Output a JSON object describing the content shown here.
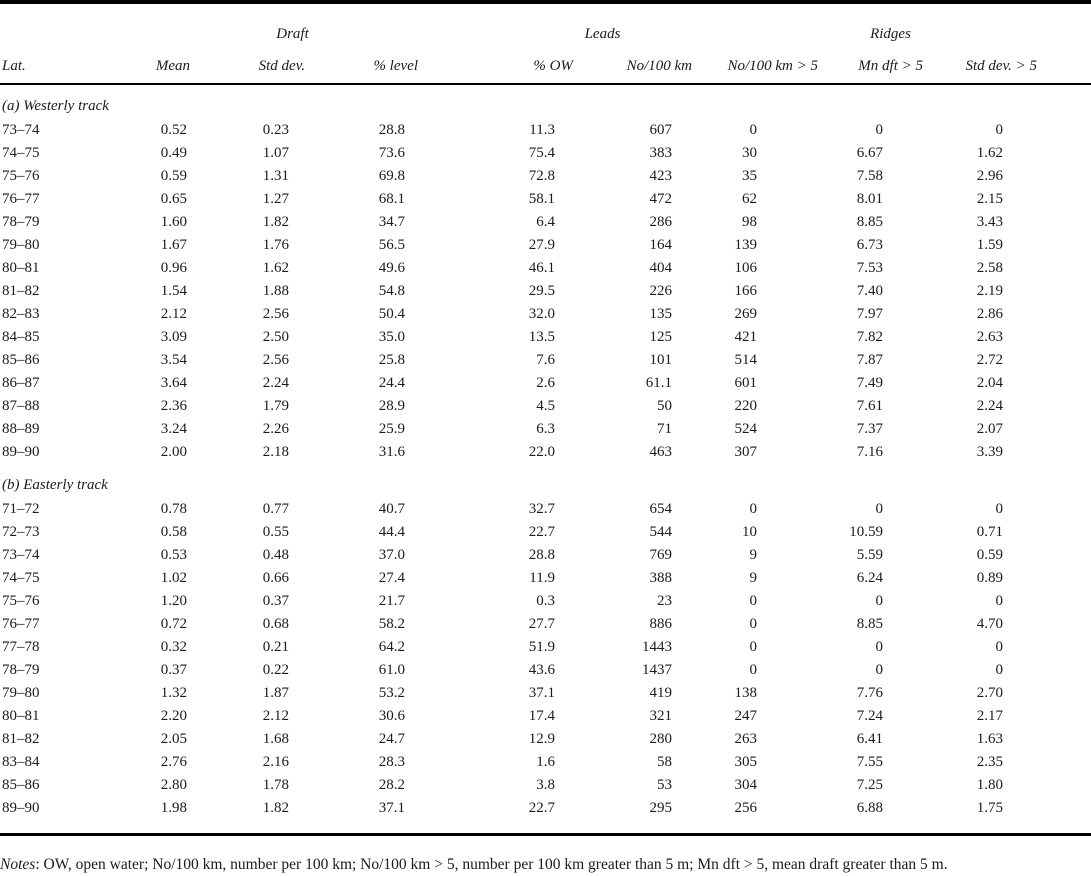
{
  "table": {
    "group_header": {
      "draft": "Draft",
      "leads": "Leads",
      "ridges": "Ridges"
    },
    "columns": [
      "Lat.",
      "Mean",
      "Std dev.",
      "% level",
      "% OW",
      "No/100 km",
      "No/100 km > 5",
      "Mn dft > 5",
      "Std dev. > 5"
    ],
    "sections": [
      {
        "label": "(a) Westerly track",
        "rows": [
          [
            "73–74",
            "0.52",
            "0.23",
            "28.8",
            "11.3",
            "607",
            "0",
            "0",
            "0"
          ],
          [
            "74–75",
            "0.49",
            "1.07",
            "73.6",
            "75.4",
            "383",
            "30",
            "6.67",
            "1.62"
          ],
          [
            "75–76",
            "0.59",
            "1.31",
            "69.8",
            "72.8",
            "423",
            "35",
            "7.58",
            "2.96"
          ],
          [
            "76–77",
            "0.65",
            "1.27",
            "68.1",
            "58.1",
            "472",
            "62",
            "8.01",
            "2.15"
          ],
          [
            "78–79",
            "1.60",
            "1.82",
            "34.7",
            "6.4",
            "286",
            "98",
            "8.85",
            "3.43"
          ],
          [
            "79–80",
            "1.67",
            "1.76",
            "56.5",
            "27.9",
            "164",
            "139",
            "6.73",
            "1.59"
          ],
          [
            "80–81",
            "0.96",
            "1.62",
            "49.6",
            "46.1",
            "404",
            "106",
            "7.53",
            "2.58"
          ],
          [
            "81–82",
            "1.54",
            "1.88",
            "54.8",
            "29.5",
            "226",
            "166",
            "7.40",
            "2.19"
          ],
          [
            "82–83",
            "2.12",
            "2.56",
            "50.4",
            "32.0",
            "135",
            "269",
            "7.97",
            "2.86"
          ],
          [
            "84–85",
            "3.09",
            "2.50",
            "35.0",
            "13.5",
            "125",
            "421",
            "7.82",
            "2.63"
          ],
          [
            "85–86",
            "3.54",
            "2.56",
            "25.8",
            "7.6",
            "101",
            "514",
            "7.87",
            "2.72"
          ],
          [
            "86–87",
            "3.64",
            "2.24",
            "24.4",
            "2.6",
            "61.1",
            "601",
            "7.49",
            "2.04"
          ],
          [
            "87–88",
            "2.36",
            "1.79",
            "28.9",
            "4.5",
            "50",
            "220",
            "7.61",
            "2.24"
          ],
          [
            "88–89",
            "3.24",
            "2.26",
            "25.9",
            "6.3",
            "71",
            "524",
            "7.37",
            "2.07"
          ],
          [
            "89–90",
            "2.00",
            "2.18",
            "31.6",
            "22.0",
            "463",
            "307",
            "7.16",
            "3.39"
          ]
        ]
      },
      {
        "label": "(b) Easterly track",
        "rows": [
          [
            "71–72",
            "0.78",
            "0.77",
            "40.7",
            "32.7",
            "654",
            "0",
            "0",
            "0"
          ],
          [
            "72–73",
            "0.58",
            "0.55",
            "44.4",
            "22.7",
            "544",
            "10",
            "10.59",
            "0.71"
          ],
          [
            "73–74",
            "0.53",
            "0.48",
            "37.0",
            "28.8",
            "769",
            "9",
            "5.59",
            "0.59"
          ],
          [
            "74–75",
            "1.02",
            "0.66",
            "27.4",
            "11.9",
            "388",
            "9",
            "6.24",
            "0.89"
          ],
          [
            "75–76",
            "1.20",
            "0.37",
            "21.7",
            "0.3",
            "23",
            "0",
            "0",
            "0"
          ],
          [
            "76–77",
            "0.72",
            "0.68",
            "58.2",
            "27.7",
            "886",
            "0",
            "8.85",
            "4.70"
          ],
          [
            "77–78",
            "0.32",
            "0.21",
            "64.2",
            "51.9",
            "1443",
            "0",
            "0",
            "0"
          ],
          [
            "78–79",
            "0.37",
            "0.22",
            "61.0",
            "43.6",
            "1437",
            "0",
            "0",
            "0"
          ],
          [
            "79–80",
            "1.32",
            "1.87",
            "53.2",
            "37.1",
            "419",
            "138",
            "7.76",
            "2.70"
          ],
          [
            "80–81",
            "2.20",
            "2.12",
            "30.6",
            "17.4",
            "321",
            "247",
            "7.24",
            "2.17"
          ],
          [
            "81–82",
            "2.05",
            "1.68",
            "24.7",
            "12.9",
            "280",
            "263",
            "6.41",
            "1.63"
          ],
          [
            "83–84",
            "2.76",
            "2.16",
            "28.3",
            "1.6",
            "58",
            "305",
            "7.55",
            "2.35"
          ],
          [
            "85–86",
            "2.80",
            "1.78",
            "28.2",
            "3.8",
            "53",
            "304",
            "7.25",
            "1.80"
          ],
          [
            "89–90",
            "1.98",
            "1.82",
            "37.1",
            "22.7",
            "295",
            "256",
            "6.88",
            "1.75"
          ]
        ]
      }
    ],
    "notes_label": "Notes",
    "notes_text": ": OW, open water; No/100 km, number per 100 km; No/100 km > 5, number per 100 km greater than 5 m; Mn dft > 5, mean draft greater than 5 m."
  }
}
